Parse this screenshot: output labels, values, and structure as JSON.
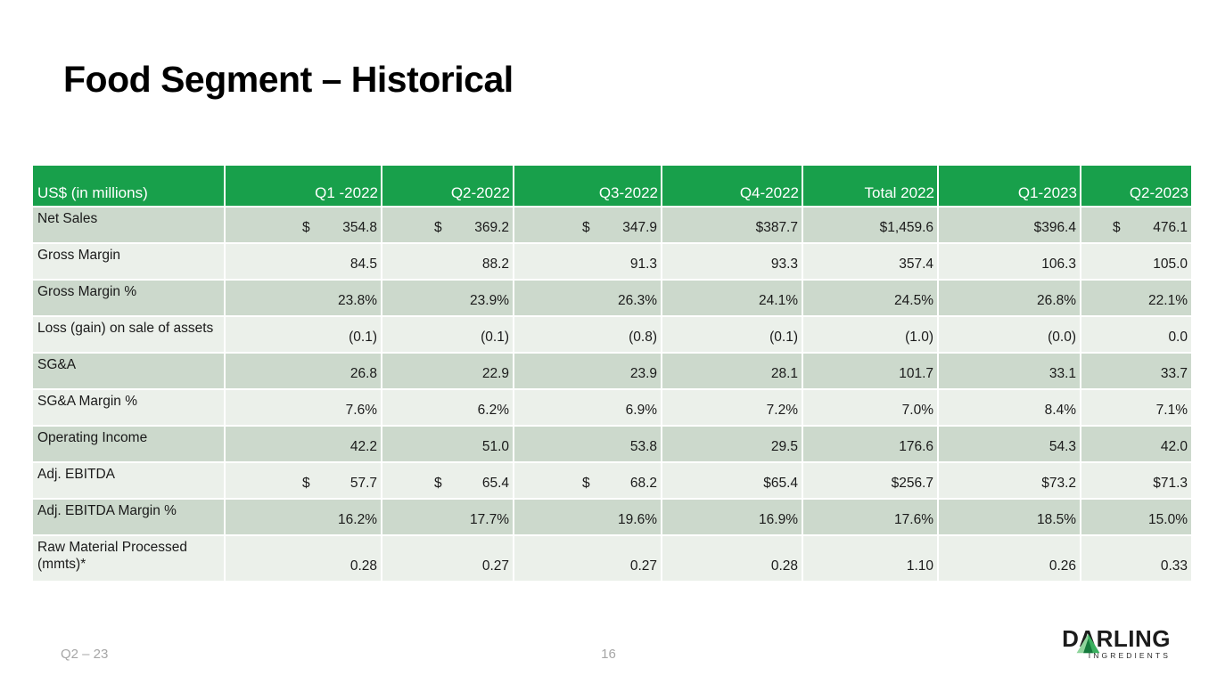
{
  "slide": {
    "title": "Food Segment – Historical",
    "footer": {
      "deck_label": "Q2 – 23",
      "page_number": "16"
    },
    "logo": {
      "brand": "DARLING",
      "brand_sub": "INGREDIENTS"
    }
  },
  "colors": {
    "header_bg": "#18a04b",
    "header_text": "#ffffff",
    "row_dark": "#ccd9cc",
    "row_light": "#ebf0ea",
    "body_text": "#1a1a1a",
    "footer_text": "#a6a6a6",
    "logo_green_light": "#8fd49c",
    "logo_green_mid": "#3bb05f",
    "logo_green_dark": "#157a3c"
  },
  "chart_data": {
    "type": "table",
    "title": "Food Segment – Historical",
    "corner_label": "US$ (in millions)",
    "columns": [
      "Q1 -2022",
      "Q2-2022",
      "Q3-2022",
      "Q4-2022",
      "Total 2022",
      "Q1-2023",
      "Q2-2023"
    ],
    "rows": [
      {
        "label": "Net Sales",
        "values": [
          {
            "d": "$",
            "v": "354.8"
          },
          {
            "d": "$",
            "v": "369.2"
          },
          {
            "d": "$",
            "v": "347.9"
          },
          "$387.7",
          "$1,459.6",
          "$396.4",
          {
            "d": "$",
            "v": "476.1"
          }
        ]
      },
      {
        "label": "Gross Margin",
        "values": [
          "84.5",
          "88.2",
          "91.3",
          "93.3",
          "357.4",
          "106.3",
          "105.0"
        ]
      },
      {
        "label": "Gross Margin %",
        "values": [
          "23.8%",
          "23.9%",
          "26.3%",
          "24.1%",
          "24.5%",
          "26.8%",
          "22.1%"
        ]
      },
      {
        "label": "Loss (gain) on sale of assets",
        "values": [
          "(0.1)",
          "(0.1)",
          "(0.8)",
          "(0.1)",
          "(1.0)",
          "(0.0)",
          "0.0"
        ]
      },
      {
        "label": "SG&A",
        "values": [
          "26.8",
          "22.9",
          "23.9",
          "28.1",
          "101.7",
          "33.1",
          "33.7"
        ]
      },
      {
        "label": "SG&A Margin %",
        "values": [
          "7.6%",
          "6.2%",
          "6.9%",
          "7.2%",
          "7.0%",
          "8.4%",
          "7.1%"
        ]
      },
      {
        "label": "Operating Income",
        "values": [
          "42.2",
          "51.0",
          "53.8",
          "29.5",
          "176.6",
          "54.3",
          "42.0"
        ]
      },
      {
        "label": "Adj. EBITDA",
        "values": [
          {
            "d": "$",
            "v": "57.7"
          },
          {
            "d": "$",
            "v": "65.4"
          },
          {
            "d": "$",
            "v": "68.2"
          },
          "$65.4",
          "$256.7",
          "$73.2",
          "$71.3"
        ]
      },
      {
        "label": "Adj. EBITDA Margin %",
        "values": [
          "16.2%",
          "17.7%",
          "19.6%",
          "16.9%",
          "17.6%",
          "18.5%",
          "15.0%"
        ]
      },
      {
        "label": "Raw Material Processed (mmts)*",
        "values": [
          "0.28",
          "0.27",
          "0.27",
          "0.28",
          "1.10",
          "0.26",
          "0.33"
        ]
      }
    ]
  }
}
